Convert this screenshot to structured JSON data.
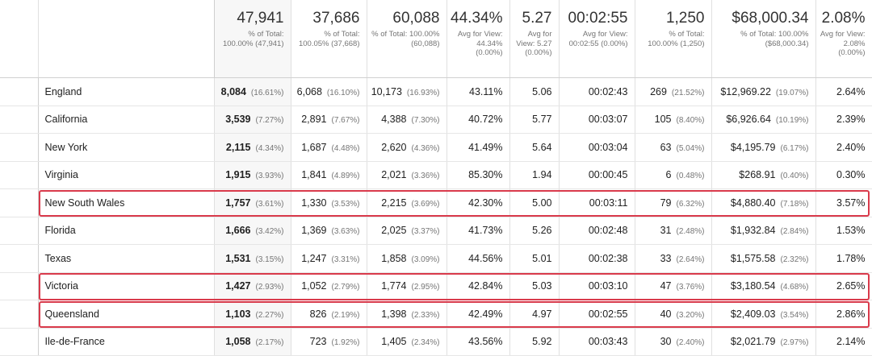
{
  "summary": [
    {
      "value": "47,941",
      "sub": "% of Total: 100.00% (47,941)"
    },
    {
      "value": "37,686",
      "sub": "% of Total: 100.05% (37,668)"
    },
    {
      "value": "60,088",
      "sub": "% of Total: 100.00% (60,088)"
    },
    {
      "value": "44.34%",
      "sub": "Avg for View: 44.34% (0.00%)"
    },
    {
      "value": "5.27",
      "sub": "Avg for View: 5.27 (0.00%)"
    },
    {
      "value": "00:02:55",
      "sub": "Avg for View: 00:02:55 (0.00%)"
    },
    {
      "value": "1,250",
      "sub": "% of Total: 100.00% (1,250)"
    },
    {
      "value": "$68,000.34",
      "sub": "% of Total: 100.00% ($68,000.34)"
    },
    {
      "value": "2.08%",
      "sub": "Avg for View: 2.08% (0.00%)"
    }
  ],
  "rows": [
    {
      "region": "England",
      "users": "8,084",
      "users_pct": "(16.61%)",
      "new_users": "6,068",
      "new_users_pct": "(16.10%)",
      "sessions": "10,173",
      "sessions_pct": "(16.93%)",
      "bounce": "43.11%",
      "pages": "5.06",
      "duration": "00:02:43",
      "transactions": "269",
      "transactions_pct": "(21.52%)",
      "revenue": "$12,969.22",
      "revenue_pct": "(19.07%)",
      "conversion": "2.64%"
    },
    {
      "region": "California",
      "users": "3,539",
      "users_pct": "(7.27%)",
      "new_users": "2,891",
      "new_users_pct": "(7.67%)",
      "sessions": "4,388",
      "sessions_pct": "(7.30%)",
      "bounce": "40.72%",
      "pages": "5.77",
      "duration": "00:03:07",
      "transactions": "105",
      "transactions_pct": "(8.40%)",
      "revenue": "$6,926.64",
      "revenue_pct": "(10.19%)",
      "conversion": "2.39%"
    },
    {
      "region": "New York",
      "users": "2,115",
      "users_pct": "(4.34%)",
      "new_users": "1,687",
      "new_users_pct": "(4.48%)",
      "sessions": "2,620",
      "sessions_pct": "(4.36%)",
      "bounce": "41.49%",
      "pages": "5.64",
      "duration": "00:03:04",
      "transactions": "63",
      "transactions_pct": "(5.04%)",
      "revenue": "$4,195.79",
      "revenue_pct": "(6.17%)",
      "conversion": "2.40%"
    },
    {
      "region": "Virginia",
      "users": "1,915",
      "users_pct": "(3.93%)",
      "new_users": "1,841",
      "new_users_pct": "(4.89%)",
      "sessions": "2,021",
      "sessions_pct": "(3.36%)",
      "bounce": "85.30%",
      "pages": "1.94",
      "duration": "00:00:45",
      "transactions": "6",
      "transactions_pct": "(0.48%)",
      "revenue": "$268.91",
      "revenue_pct": "(0.40%)",
      "conversion": "0.30%"
    },
    {
      "region": "New South Wales",
      "users": "1,757",
      "users_pct": "(3.61%)",
      "new_users": "1,330",
      "new_users_pct": "(3.53%)",
      "sessions": "2,215",
      "sessions_pct": "(3.69%)",
      "bounce": "42.30%",
      "pages": "5.00",
      "duration": "00:03:11",
      "transactions": "79",
      "transactions_pct": "(6.32%)",
      "revenue": "$4,880.40",
      "revenue_pct": "(7.18%)",
      "conversion": "3.57%"
    },
    {
      "region": "Florida",
      "users": "1,666",
      "users_pct": "(3.42%)",
      "new_users": "1,369",
      "new_users_pct": "(3.63%)",
      "sessions": "2,025",
      "sessions_pct": "(3.37%)",
      "bounce": "41.73%",
      "pages": "5.26",
      "duration": "00:02:48",
      "transactions": "31",
      "transactions_pct": "(2.48%)",
      "revenue": "$1,932.84",
      "revenue_pct": "(2.84%)",
      "conversion": "1.53%"
    },
    {
      "region": "Texas",
      "users": "1,531",
      "users_pct": "(3.15%)",
      "new_users": "1,247",
      "new_users_pct": "(3.31%)",
      "sessions": "1,858",
      "sessions_pct": "(3.09%)",
      "bounce": "44.56%",
      "pages": "5.01",
      "duration": "00:02:38",
      "transactions": "33",
      "transactions_pct": "(2.64%)",
      "revenue": "$1,575.58",
      "revenue_pct": "(2.32%)",
      "conversion": "1.78%"
    },
    {
      "region": "Victoria",
      "users": "1,427",
      "users_pct": "(2.93%)",
      "new_users": "1,052",
      "new_users_pct": "(2.79%)",
      "sessions": "1,774",
      "sessions_pct": "(2.95%)",
      "bounce": "42.84%",
      "pages": "5.03",
      "duration": "00:03:10",
      "transactions": "47",
      "transactions_pct": "(3.76%)",
      "revenue": "$3,180.54",
      "revenue_pct": "(4.68%)",
      "conversion": "2.65%"
    },
    {
      "region": "Queensland",
      "users": "1,103",
      "users_pct": "(2.27%)",
      "new_users": "826",
      "new_users_pct": "(2.19%)",
      "sessions": "1,398",
      "sessions_pct": "(2.33%)",
      "bounce": "42.49%",
      "pages": "4.97",
      "duration": "00:02:55",
      "transactions": "40",
      "transactions_pct": "(3.20%)",
      "revenue": "$2,409.03",
      "revenue_pct": "(3.54%)",
      "conversion": "2.86%"
    },
    {
      "region": "Ile-de-France",
      "users": "1,058",
      "users_pct": "(2.17%)",
      "new_users": "723",
      "new_users_pct": "(1.92%)",
      "sessions": "1,405",
      "sessions_pct": "(2.34%)",
      "bounce": "43.56%",
      "pages": "5.92",
      "duration": "00:03:43",
      "transactions": "30",
      "transactions_pct": "(2.40%)",
      "revenue": "$2,021.79",
      "revenue_pct": "(2.97%)",
      "conversion": "2.14%"
    }
  ],
  "highlight": {
    "color": "#d93a4b",
    "rows": [
      "New South Wales",
      "Victoria",
      "Queensland"
    ]
  }
}
